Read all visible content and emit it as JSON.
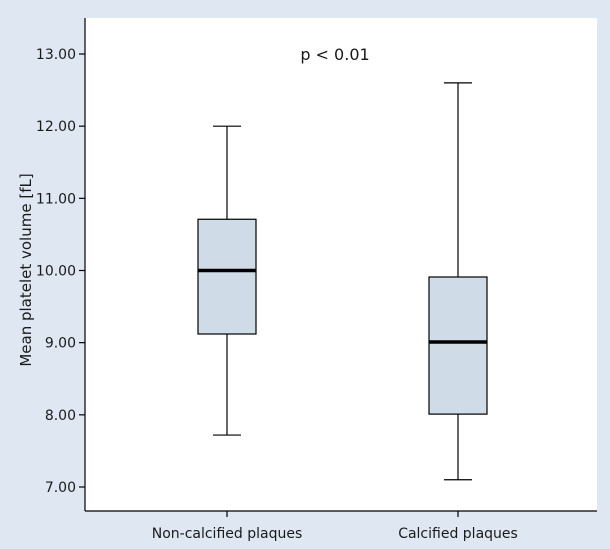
{
  "chart_data": {
    "type": "box",
    "title": "",
    "xlabel": "",
    "ylabel": "Mean platelet volume [fL]",
    "ylim": [
      6.8,
      13.3
    ],
    "yticks": [
      "7.00",
      "8.00",
      "9.00",
      "10.00",
      "11.00",
      "12.00",
      "13.00"
    ],
    "categories": [
      "Non-calcified plaques",
      "Calcified plaques"
    ],
    "boxes": [
      {
        "category": "Non-calcified plaques",
        "min": 7.72,
        "q1": 9.12,
        "median": 10.0,
        "q3": 10.71,
        "max": 12.0
      },
      {
        "category": "Calcified plaques",
        "min": 7.1,
        "q1": 8.01,
        "median": 9.01,
        "q3": 9.91,
        "max": 12.6
      }
    ],
    "annotation": "p < 0.01",
    "grid": false,
    "colors": {
      "box_fill": "#cfdce8",
      "page_background": "#dfe8f2",
      "plot_background": "#ffffff",
      "line": "#000000"
    }
  }
}
